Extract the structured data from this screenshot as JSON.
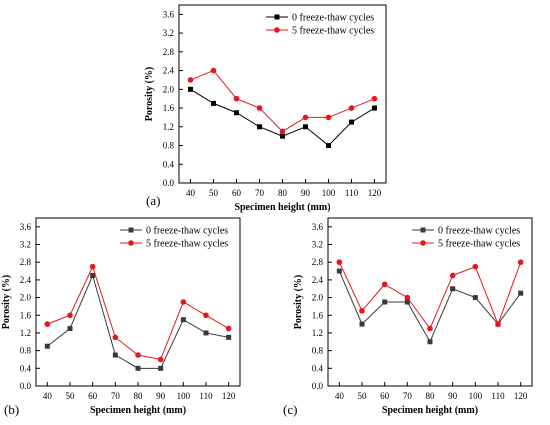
{
  "figure": {
    "panels": [
      {
        "label": "(a)"
      },
      {
        "label": "(b)"
      },
      {
        "label": "(c)"
      }
    ]
  },
  "chart_data": [
    {
      "type": "line",
      "panel": "(a)",
      "title": "",
      "xlabel": "Specimen height (mm)",
      "ylabel": "Porosity (%)",
      "xlim": [
        35,
        125
      ],
      "ylim": [
        0,
        3.8
      ],
      "xticks": [
        40,
        50,
        60,
        70,
        80,
        90,
        100,
        110,
        120
      ],
      "yticks": [
        0.0,
        0.4,
        0.8,
        1.2,
        1.6,
        2.0,
        2.4,
        2.8,
        3.2,
        3.6
      ],
      "x": [
        40,
        50,
        60,
        70,
        80,
        90,
        100,
        110,
        120
      ],
      "legend_position": "top-right",
      "grid": false,
      "series": [
        {
          "name": "0 freeze-thaw cycles",
          "color": "#000000",
          "marker": "square",
          "values": [
            2.0,
            1.7,
            1.5,
            1.2,
            1.0,
            1.2,
            0.8,
            1.3,
            1.6
          ]
        },
        {
          "name": "5 freeze-thaw cycles",
          "color": "#e8161a",
          "marker": "circle",
          "values": [
            2.2,
            2.4,
            1.8,
            1.6,
            1.1,
            1.4,
            1.4,
            1.6,
            1.8
          ]
        }
      ]
    },
    {
      "type": "line",
      "panel": "(b)",
      "title": "",
      "xlabel": "Specimen height (mm)",
      "ylabel": "Porosity (%)",
      "xlim": [
        35,
        125
      ],
      "ylim": [
        0,
        3.8
      ],
      "xticks": [
        40,
        50,
        60,
        70,
        80,
        90,
        100,
        110,
        120
      ],
      "yticks": [
        0.0,
        0.4,
        0.8,
        1.2,
        1.6,
        2.0,
        2.4,
        2.8,
        3.2,
        3.6
      ],
      "x": [
        40,
        50,
        60,
        70,
        80,
        90,
        100,
        110,
        120
      ],
      "legend_position": "top-right",
      "grid": false,
      "series": [
        {
          "name": "0 freeze-thaw cycles",
          "color": "#3a3a3a",
          "marker": "square",
          "values": [
            0.9,
            1.3,
            2.5,
            0.7,
            0.4,
            0.4,
            1.5,
            1.2,
            1.1
          ]
        },
        {
          "name": "5 freeze-thaw cycles",
          "color": "#e8161a",
          "marker": "circle",
          "values": [
            1.4,
            1.6,
            2.7,
            1.1,
            0.7,
            0.6,
            1.9,
            1.6,
            1.3
          ]
        }
      ]
    },
    {
      "type": "line",
      "panel": "(c)",
      "title": "",
      "xlabel": "Specimen height (mm)",
      "ylabel": "Porosity (%)",
      "xlim": [
        35,
        125
      ],
      "ylim": [
        0,
        3.8
      ],
      "xticks": [
        40,
        50,
        60,
        70,
        80,
        90,
        100,
        110,
        120
      ],
      "yticks": [
        0.0,
        0.4,
        0.8,
        1.2,
        1.6,
        2.0,
        2.4,
        2.8,
        3.2,
        3.6
      ],
      "x": [
        40,
        50,
        60,
        70,
        80,
        90,
        100,
        110,
        120
      ],
      "legend_position": "top-right",
      "grid": false,
      "series": [
        {
          "name": "0 freeze-thaw cycles",
          "color": "#3a3a3a",
          "marker": "square",
          "values": [
            2.6,
            1.4,
            1.9,
            1.9,
            1.0,
            2.2,
            2.0,
            1.4,
            2.1
          ]
        },
        {
          "name": "5 freeze-thaw cycles",
          "color": "#e8161a",
          "marker": "circle",
          "values": [
            2.8,
            1.7,
            2.3,
            2.0,
            1.3,
            2.5,
            2.7,
            1.4,
            2.8
          ]
        }
      ]
    }
  ]
}
